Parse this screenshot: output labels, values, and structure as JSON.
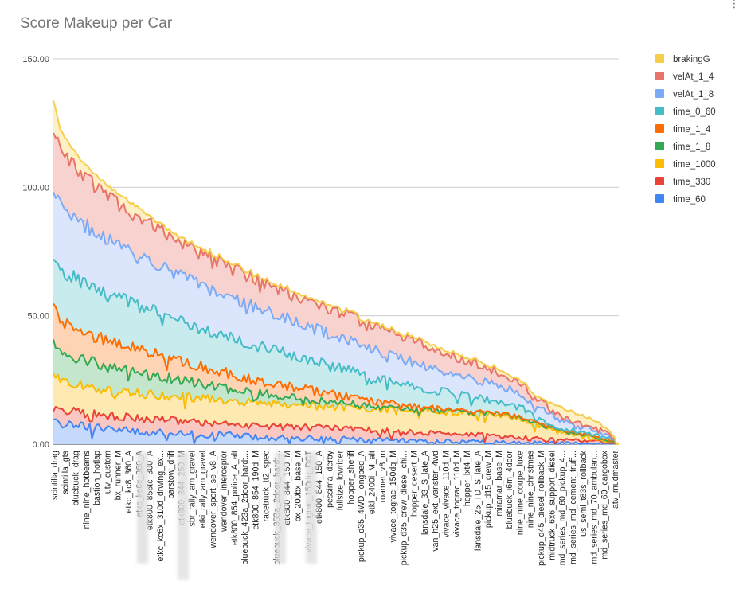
{
  "chart_data": {
    "type": "area",
    "stacked": true,
    "title": "Score Makeup per Car",
    "xlabel": "",
    "ylabel": "",
    "ylim": [
      0,
      150
    ],
    "yticks": [
      "0.00",
      "50.00",
      "100.00",
      "150.00"
    ],
    "gridlines": true,
    "legend_position": "right",
    "n_points": 250,
    "x_labels": [
      "scintilla_drag",
      "scintilla_gts",
      "bluebuck_drag",
      "nine_nine_hotbeams",
      "bastion_hotlap",
      "utv_custom",
      "bx_runner_M",
      "etkc_kc8_360_A",
      "etkc_kc6x_360_A",
      "etk800_856tc_300_A",
      "etkc_kc6x_310d_drwing_ex...",
      "barstow_drift",
      "etk800_844_250_M",
      "sbr_rally_am_gravel",
      "etki_rally_am_gravel",
      "wendover_sport_se_v8_A",
      "wendover_interceptor",
      "etk800_854_police_A_alt",
      "bluebuck_423a_2door_hardt...",
      "etk800_854_190d_M",
      "racetruck_tt2_spec",
      "bluebuck_353a_2door_hardt...",
      "etk800_844_150_M",
      "bx_200bx_base_M",
      "vivace_tograc_150dq_DCT",
      "etk800_844_150_A",
      "pessima_derby",
      "fullsize_lowrider",
      "hopper_sheriff",
      "pickup_d35_4WD_longbed_A",
      "etkl_2400i_M_alt",
      "roamer_v8_m",
      "vivace_tograc_150dq_M",
      "pickup_d35_crew_diesel_chi...",
      "hopper_desert_M",
      "lansdale_33_S_late_A",
      "van_h25_ext_vanster_4wd",
      "vivace_vivace_110d_M",
      "vivace_tograc_110d_M",
      "hopper_lxt4_M",
      "lansdale_25_TD_S_late_A",
      "pickup_d15_crew_M",
      "miramar_base_M",
      "bluebuck_i6m_4door",
      "nine_nine_coupe_luxe",
      "nine_nine_christmas",
      "pickup_d45_diesel_rollback_M",
      "midtruck_6x6_support_diesel",
      "md_series_md_60_pickup_4...",
      "md_series_md_cement_truff...",
      "us_semi_t83s_rollback",
      "md_series_md_70_ambulan...",
      "md_series_md_60_cargobox",
      "atv_mudmaster"
    ],
    "series": [
      {
        "name": "brakingG",
        "color": "#f6cd4d",
        "fill": "#fdf0c4"
      },
      {
        "name": "velAt_1_4",
        "color": "#e8746b",
        "fill": "#f8d2cf"
      },
      {
        "name": "velAt_1_8",
        "color": "#7baaf7",
        "fill": "#dbe6fc"
      },
      {
        "name": "time_0_60",
        "color": "#46bdc6",
        "fill": "#c8ebee"
      },
      {
        "name": "time_1_4",
        "color": "#ff6d01",
        "fill": "#ffd4b5"
      },
      {
        "name": "time_1_8",
        "color": "#34a853",
        "fill": "#c4e6cc"
      },
      {
        "name": "time_1000",
        "color": "#fbbc04",
        "fill": "#fde9b1"
      },
      {
        "name": "time_330",
        "color": "#ea4335",
        "fill": "#f9c8c3"
      },
      {
        "name": "time_60",
        "color": "#4285f4",
        "fill": "#c5d9fc"
      }
    ],
    "cumulative_profile": {
      "positions": [
        0,
        0.013,
        0.05,
        0.1,
        0.15,
        0.2,
        0.25,
        0.3,
        0.35,
        0.4,
        0.45,
        0.5,
        0.55,
        0.6,
        0.65,
        0.7,
        0.75,
        0.8,
        0.83,
        0.85,
        0.9,
        0.95,
        0.98,
        1.0
      ],
      "time_60": [
        9,
        8,
        7,
        6,
        5,
        4.5,
        4,
        3.5,
        3,
        2.5,
        2.3,
        2,
        1.8,
        1.5,
        1.3,
        1,
        0.8,
        0.6,
        0.5,
        0.5,
        0.3,
        0.2,
        0.1,
        0
      ],
      "time_330": [
        15,
        14,
        12,
        11,
        10,
        9.5,
        9,
        8,
        7.5,
        7,
        6.5,
        6,
        5.5,
        5,
        4.5,
        4,
        3.5,
        3,
        2.5,
        2,
        1.5,
        1,
        0.5,
        0
      ],
      "time_1000": [
        27,
        25,
        23,
        21,
        20,
        19,
        18,
        17,
        16,
        15.5,
        15,
        14.5,
        14,
        13.5,
        13,
        12.5,
        12,
        11,
        10,
        8,
        5,
        2.5,
        1,
        0
      ],
      "time_1_8": [
        39,
        36,
        33,
        30,
        28,
        26,
        24,
        22,
        20,
        19,
        17,
        16,
        15,
        14,
        13,
        12.5,
        12,
        11,
        10,
        8,
        5,
        3,
        1.5,
        0
      ],
      "time_1_4": [
        53,
        48,
        44,
        40,
        37,
        34,
        31,
        28,
        25,
        23,
        21,
        19,
        17,
        15.5,
        14,
        13,
        12,
        11,
        10,
        8,
        5,
        3,
        1.5,
        0
      ],
      "time_0_60": [
        73,
        68,
        63,
        58,
        54,
        50,
        46,
        42,
        39,
        36,
        33,
        30,
        27,
        24,
        22,
        20,
        18,
        16,
        14,
        11,
        6,
        3.5,
        2,
        0
      ],
      "velAt_1_8": [
        100,
        93,
        86,
        79,
        73,
        68,
        63,
        58,
        54,
        50,
        46,
        42,
        38,
        34,
        31,
        28,
        25,
        22,
        19,
        15,
        9,
        5.5,
        3,
        0
      ],
      "velAt_1_4": [
        123,
        115,
        105,
        96,
        89,
        82,
        76,
        70,
        65,
        60,
        56,
        52,
        47,
        43,
        39,
        35,
        31,
        27,
        23.5,
        18,
        11,
        7,
        4,
        0
      ],
      "brakingG": [
        134,
        122,
        110,
        100,
        92,
        84,
        77,
        71,
        66,
        61,
        57,
        53,
        48,
        44,
        40,
        36,
        32,
        28,
        24,
        19,
        14,
        10,
        6,
        0
      ]
    }
  },
  "ui": {
    "more_icon": "more-vertical-icon"
  }
}
